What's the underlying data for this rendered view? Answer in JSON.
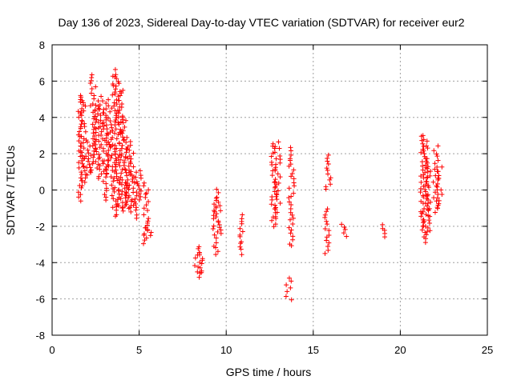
{
  "chart_data": {
    "type": "scatter",
    "title": "Day 136 of 2023, Sidereal Day-to-day VTEC variation (SDTVAR) for receiver eur2",
    "xlabel": "GPS time / hours",
    "ylabel": "SDTVAR / TECUs",
    "xlim": [
      0,
      25
    ],
    "ylim": [
      -8,
      8
    ],
    "xticks": [
      "0",
      "5",
      "10",
      "15",
      "20",
      "25"
    ],
    "yticks": [
      "-8",
      "-6",
      "-4",
      "-2",
      "0",
      "2",
      "4",
      "6",
      "8"
    ],
    "grid": true,
    "marker": "plus",
    "color": "#ff0000",
    "clusters": [
      {
        "x": 1.65,
        "ymin": -0.6,
        "ymax": 5.2
      },
      {
        "x": 1.8,
        "ymin": 0.2,
        "ymax": 5.1
      },
      {
        "x": 2.1,
        "ymin": 0.8,
        "ymax": 2.8
      },
      {
        "x": 2.35,
        "ymin": 0.9,
        "ymax": 6.4
      },
      {
        "x": 2.55,
        "ymin": 1.2,
        "ymax": 4.9
      },
      {
        "x": 2.8,
        "ymin": 0.6,
        "ymax": 5.1
      },
      {
        "x": 3.1,
        "ymin": -0.6,
        "ymax": 4.4
      },
      {
        "x": 3.25,
        "ymin": 0.9,
        "ymax": 5.0
      },
      {
        "x": 3.55,
        "ymin": -1.5,
        "ymax": 6.6
      },
      {
        "x": 3.75,
        "ymin": -0.9,
        "ymax": 6.2
      },
      {
        "x": 3.95,
        "ymin": -1.0,
        "ymax": 5.5
      },
      {
        "x": 4.15,
        "ymin": -1.2,
        "ymax": 4.0
      },
      {
        "x": 4.35,
        "ymin": -1.0,
        "ymax": 2.6
      },
      {
        "x": 4.55,
        "ymin": -1.2,
        "ymax": 2.4
      },
      {
        "x": 4.75,
        "ymin": -0.8,
        "ymax": 1.0
      },
      {
        "x": 4.95,
        "ymin": -1.5,
        "ymax": 1.0
      },
      {
        "x": 5.4,
        "ymin": -2.9,
        "ymax": 0.4
      },
      {
        "x": 5.55,
        "ymin": -2.7,
        "ymax": -1.9
      },
      {
        "x": 8.35,
        "ymin": -4.8,
        "ymax": -3.1
      },
      {
        "x": 8.5,
        "ymin": -4.6,
        "ymax": -3.4
      },
      {
        "x": 9.4,
        "ymin": -3.6,
        "ymax": 0.0
      },
      {
        "x": 9.55,
        "ymin": -2.4,
        "ymax": -0.5
      },
      {
        "x": 10.8,
        "ymin": -3.5,
        "ymax": -1.4
      },
      {
        "x": 12.75,
        "ymin": -2.0,
        "ymax": 2.6
      },
      {
        "x": 12.95,
        "ymin": -1.6,
        "ymax": 2.6
      },
      {
        "x": 13.6,
        "ymin": -6.0,
        "ymax": -4.9
      },
      {
        "x": 13.75,
        "ymin": -3.1,
        "ymax": 2.3
      },
      {
        "x": 15.8,
        "ymin": -3.5,
        "ymax": -1.0
      },
      {
        "x": 15.85,
        "ymin": 0.0,
        "ymax": 1.9
      },
      {
        "x": 16.75,
        "ymin": -2.5,
        "ymax": -1.9
      },
      {
        "x": 19.1,
        "ymin": -2.6,
        "ymax": -1.9
      },
      {
        "x": 21.3,
        "ymin": -2.9,
        "ymax": 2.9
      },
      {
        "x": 21.45,
        "ymin": -2.5,
        "ymax": 3.0
      },
      {
        "x": 21.6,
        "ymin": -2.2,
        "ymax": 1.5
      },
      {
        "x": 22.05,
        "ymin": -1.2,
        "ymax": 2.4
      },
      {
        "x": 22.25,
        "ymin": -0.9,
        "ymax": 1.2
      }
    ]
  }
}
